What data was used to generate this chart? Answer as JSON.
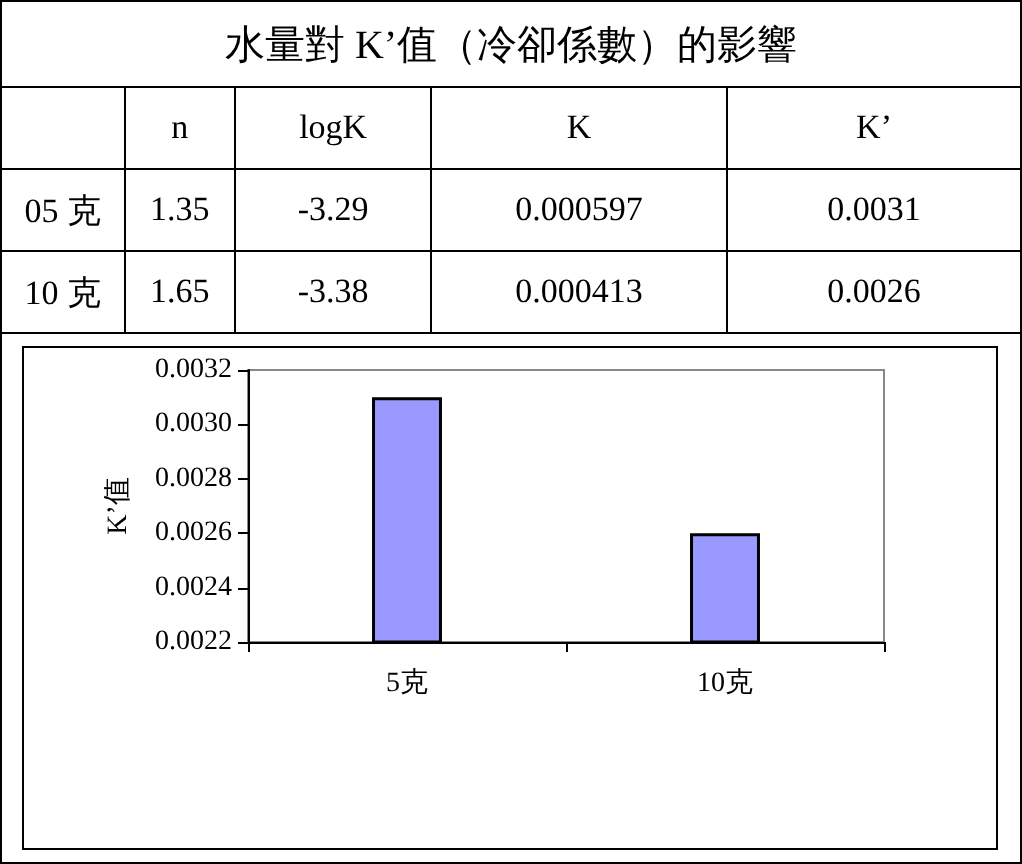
{
  "chart_data": {
    "type": "bar",
    "title": "水量對 K’值（冷卻係數）的影響",
    "ylabel": "K’值",
    "annotations": [
      "n",
      "logK",
      "K",
      "K’",
      "05 克",
      "1.35",
      "-3.29",
      "0.000597",
      "0.0031",
      "10 克",
      "1.65",
      "-3.38",
      "0.000413",
      "0.0026"
    ],
    "categories": [
      "5克",
      "10克"
    ],
    "values": [
      0.0031,
      0.0026
    ],
    "color": "#9999ff",
    "ylim": [
      0.0022,
      0.0032
    ],
    "yticks": [
      0.0022,
      0.0024,
      0.0026,
      0.0028,
      {
        "value": 0.003,
        "label": "0.0030"
      },
      0.0032
    ],
    "grid": false
  }
}
